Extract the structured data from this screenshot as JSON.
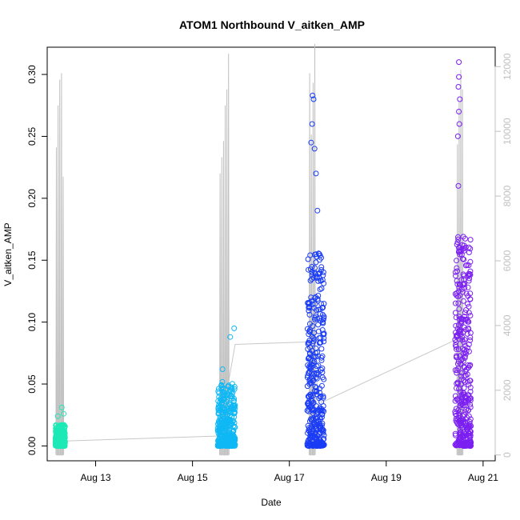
{
  "chart_data": {
    "type": "scatter",
    "title": "ATOM1 Northbound V_aitken_AMP",
    "xlabel": "Date",
    "ylabel": "V_aitken_AMP",
    "x_ticks": [
      "Aug 13",
      "Aug 15",
      "Aug 17",
      "Aug 19",
      "Aug 21"
    ],
    "x_tick_days": [
      13,
      15,
      17,
      19,
      21
    ],
    "xlim": [
      12.0,
      21.25
    ],
    "ylim": [
      -0.012,
      0.322
    ],
    "y_ticks": [
      "0.00",
      "0.05",
      "0.10",
      "0.15",
      "0.20",
      "0.25",
      "0.30"
    ],
    "y_tick_values": [
      0,
      0.05,
      0.1,
      0.15,
      0.2,
      0.25,
      0.3
    ],
    "y2_ticks": [
      "0",
      "2000",
      "4000",
      "6000",
      "8000",
      "10000",
      "12000"
    ],
    "y2_tick_values": [
      0,
      2000,
      4000,
      6000,
      8000,
      10000,
      12000
    ],
    "y2lim": [
      -180,
      12600
    ],
    "secondary_line_color": "#c0c0c0",
    "series": [
      {
        "color": "#1de9b6",
        "x_range": [
          12.17,
          12.37
        ],
        "y_range": [
          0.0,
          0.031
        ],
        "peaks": [
          [
            12.22,
            0.024
          ],
          [
            12.3,
            0.031
          ],
          [
            12.34,
            0.026
          ]
        ]
      },
      {
        "color": "#0fb8f5",
        "x_range": [
          15.52,
          15.88
        ],
        "y_range": [
          0.0,
          0.095
        ],
        "peaks": [
          [
            15.62,
            0.062
          ],
          [
            15.78,
            0.088
          ],
          [
            15.86,
            0.095
          ]
        ]
      },
      {
        "color": "#1a3cf5",
        "x_range": [
          17.37,
          17.72
        ],
        "y_range": [
          0.0,
          0.283
        ],
        "peaks": [
          [
            17.48,
            0.283
          ],
          [
            17.5,
            0.28
          ],
          [
            17.47,
            0.26
          ],
          [
            17.45,
            0.245
          ],
          [
            17.52,
            0.24
          ],
          [
            17.55,
            0.22
          ],
          [
            17.58,
            0.19
          ],
          [
            17.62,
            0.155
          ]
        ]
      },
      {
        "color": "#7b1ff2",
        "x_range": [
          20.42,
          20.75
        ],
        "y_range": [
          0.0,
          0.31
        ],
        "peaks": [
          [
            20.5,
            0.31
          ],
          [
            20.5,
            0.298
          ],
          [
            20.49,
            0.29
          ],
          [
            20.52,
            0.28
          ],
          [
            20.5,
            0.27
          ],
          [
            20.51,
            0.26
          ],
          [
            20.48,
            0.25
          ],
          [
            20.49,
            0.21
          ],
          [
            20.5,
            0.16
          ],
          [
            20.53,
            0.13
          ],
          [
            20.71,
            0.082
          ]
        ]
      }
    ],
    "connector_line": [
      [
        12.37,
        0.004
      ],
      [
        15.55,
        0.008
      ],
      [
        15.88,
        0.082
      ],
      [
        17.38,
        0.084
      ],
      [
        17.66,
        0.035
      ],
      [
        20.45,
        0.086
      ]
    ],
    "secondary_series": [
      {
        "x": 12.17,
        "values": [
          9500,
          10800,
          11600,
          11800,
          8600
        ]
      },
      {
        "x": 15.55,
        "values": [
          8700,
          9200,
          9700,
          10800,
          11300,
          12400
        ]
      },
      {
        "x": 17.4,
        "values": [
          11800,
          9900,
          11500,
          12700
        ]
      },
      {
        "x": 20.45,
        "values": [
          9600,
          10900,
          11900,
          11300
        ]
      }
    ]
  }
}
